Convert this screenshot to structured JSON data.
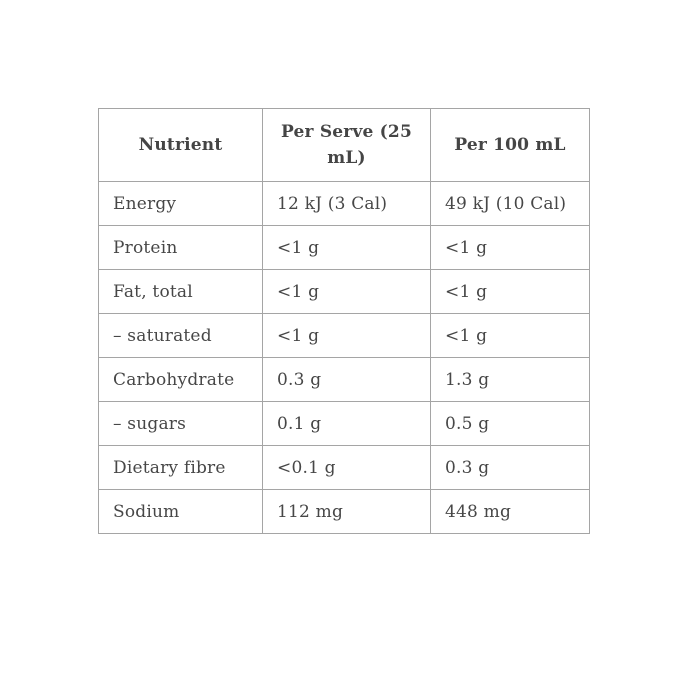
{
  "table": {
    "columns": [
      "Nutrient",
      "Per Serve (25 mL)",
      "Per 100 mL"
    ],
    "rows": [
      {
        "nutrient": "Energy",
        "per_serve": "12 kJ (3 Cal)",
        "per_100ml": "49 kJ (10 Cal)"
      },
      {
        "nutrient": "Protein",
        "per_serve": "<1 g",
        "per_100ml": "<1 g"
      },
      {
        "nutrient": "Fat, total",
        "per_serve": "<1 g",
        "per_100ml": "<1 g"
      },
      {
        "nutrient": "– saturated",
        "per_serve": "<1 g",
        "per_100ml": "<1 g"
      },
      {
        "nutrient": "Carbohydrate",
        "per_serve": "0.3 g",
        "per_100ml": "1.3 g"
      },
      {
        "nutrient": "– sugars",
        "per_serve": "0.1 g",
        "per_100ml": "0.5 g"
      },
      {
        "nutrient": "Dietary fibre",
        "per_serve": "<0.1 g",
        "per_100ml": "0.3 g"
      },
      {
        "nutrient": "Sodium",
        "per_serve": "112 mg",
        "per_100ml": "448 mg"
      }
    ]
  },
  "colors": {
    "text": "#474747",
    "border": "#a5a5a5",
    "background": "#ffffff"
  }
}
